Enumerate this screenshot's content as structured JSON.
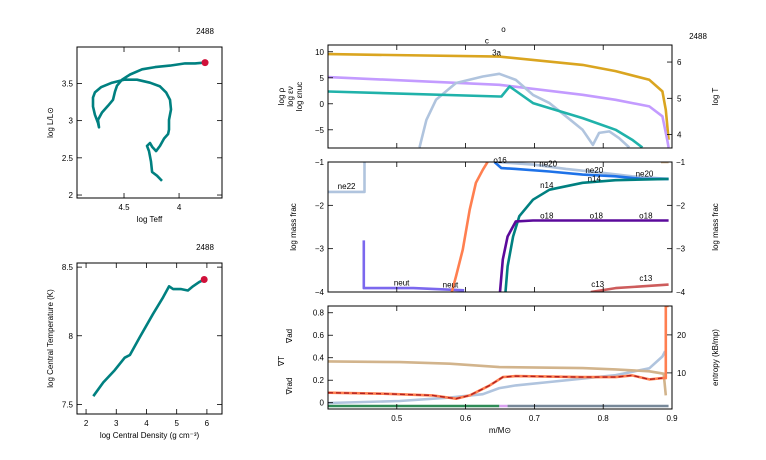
{
  "chart_data": [
    {
      "id": "hr",
      "type": "line",
      "title": "2488",
      "xlabel": "log Teff",
      "ylabel": "log L/L⊙",
      "xlim": [
        4.927,
        3.61
      ],
      "ylim": [
        1.96,
        3.99
      ],
      "xticks": [
        {
          "v": 4.5,
          "label": "4.5"
        },
        {
          "v": 4,
          "label": "4"
        }
      ],
      "yticks": [
        {
          "v": 2,
          "label": "2"
        },
        {
          "v": 2.5,
          "label": "2.5"
        },
        {
          "v": 3,
          "label": "3"
        },
        {
          "v": 3.5,
          "label": "3.5"
        }
      ],
      "series": [
        {
          "color": "#008080",
          "x": [
            4.155,
            4.2,
            4.245,
            4.255,
            4.273,
            4.291,
            4.264,
            4.245,
            4.209,
            4.173,
            4.136,
            4.1,
            4.091,
            4.091,
            4.073,
            4.082,
            4.118,
            4.173,
            4.264,
            4.382,
            4.5,
            4.609,
            4.709,
            4.764,
            4.782,
            4.782,
            4.764,
            4.736,
            4.727,
            4.736,
            4.7,
            4.645,
            4.6,
            4.582,
            4.564,
            4.518,
            4.445,
            4.336,
            4.218,
            4.082,
            3.945,
            3.855,
            3.764
          ],
          "y": [
            2.19,
            2.26,
            2.31,
            2.45,
            2.59,
            2.66,
            2.7,
            2.65,
            2.59,
            2.66,
            2.76,
            2.82,
            2.88,
            3.01,
            3.15,
            3.28,
            3.38,
            3.46,
            3.51,
            3.55,
            3.55,
            3.51,
            3.45,
            3.38,
            3.31,
            3.19,
            3.08,
            2.97,
            2.91,
            3.01,
            3.11,
            3.2,
            3.28,
            3.39,
            3.47,
            3.55,
            3.62,
            3.69,
            3.72,
            3.74,
            3.77,
            3.77,
            3.78
          ]
        }
      ],
      "marker": {
        "color": "#d0103a",
        "x": 3.764,
        "y": 3.78
      }
    },
    {
      "id": "rhoT",
      "type": "line",
      "title": "2488",
      "xlabel": "log Central Density (g cm⁻³)",
      "ylabel": "log Central Temperature (K)",
      "xlim": [
        1.7,
        6.5
      ],
      "ylim": [
        7.43,
        8.53
      ],
      "xticks": [
        {
          "v": 2,
          "label": "2"
        },
        {
          "v": 3,
          "label": "3"
        },
        {
          "v": 4,
          "label": "4"
        },
        {
          "v": 5,
          "label": "5"
        },
        {
          "v": 6,
          "label": "6"
        }
      ],
      "yticks": [
        {
          "v": 7.5,
          "label": "7.5"
        },
        {
          "v": 8,
          "label": "8"
        },
        {
          "v": 8.5,
          "label": "8.5"
        }
      ],
      "series": [
        {
          "color": "#008080",
          "x": [
            2.24,
            2.57,
            2.95,
            3.28,
            3.45,
            3.78,
            4.22,
            4.55,
            4.75,
            4.88,
            5.15,
            5.37,
            5.54,
            5.74,
            5.91
          ],
          "y": [
            7.56,
            7.66,
            7.75,
            7.84,
            7.86,
            7.99,
            8.16,
            8.28,
            8.36,
            8.34,
            8.34,
            8.33,
            8.36,
            8.39,
            8.41
          ]
        }
      ],
      "marker": {
        "color": "#d0103a",
        "x": 5.91,
        "y": 8.41
      }
    },
    {
      "id": "profile_top",
      "type": "line",
      "title": "2488",
      "burn_labels": [
        {
          "text": "o",
          "x": 0.655,
          "y": 13.8
        },
        {
          "text": "c",
          "x": 0.631,
          "y": 11.6
        },
        {
          "text": "3a",
          "x": 0.645,
          "y": 9.3
        }
      ],
      "xlim": [
        0.4,
        0.9
      ],
      "ylim": [
        -8.5,
        11.3
      ],
      "ylim_right": [
        3.63,
        6.47
      ],
      "left_labels": [
        {
          "text": "log ρ",
          "color": "#c39bff"
        },
        {
          "text": "log εν",
          "color": "#20b2aa"
        },
        {
          "text": "log εnuc",
          "color": "#b0c4de"
        }
      ],
      "right_label": {
        "text": "log T",
        "color": "#daa520"
      },
      "yticks": [
        {
          "v": -5,
          "label": "−5"
        },
        {
          "v": 0,
          "label": "0"
        },
        {
          "v": 5,
          "label": "5"
        },
        {
          "v": 10,
          "label": "10"
        }
      ],
      "yticks_right": [
        {
          "v": 4,
          "label": "4"
        },
        {
          "v": 5,
          "label": "5"
        },
        {
          "v": 6,
          "label": "6"
        }
      ],
      "series": [
        {
          "name": "log T",
          "axis": "right",
          "color": "#daa520",
          "x": [
            0.4,
            0.649,
            0.77,
            0.818,
            0.867,
            0.886,
            0.891,
            0.895
          ],
          "y": [
            6.22,
            6.15,
            5.92,
            5.75,
            5.51,
            5.19,
            4.68,
            3.86
          ]
        },
        {
          "name": "log ρ",
          "color": "#c39bff",
          "x": [
            0.4,
            0.649,
            0.77,
            0.818,
            0.867,
            0.886,
            0.893,
            0.895
          ],
          "y": [
            5.13,
            3.65,
            1.73,
            0.77,
            -0.5,
            -2.4,
            -6.9,
            -8.4
          ]
        },
        {
          "name": "log εnuc",
          "color": "#b0c4de",
          "x": [
            0.533,
            0.543,
            0.557,
            0.586,
            0.625,
            0.649,
            0.673,
            0.698,
            0.722,
            0.746,
            0.77,
            0.785,
            0.794,
            0.809,
            0.823,
            0.838
          ],
          "y": [
            -8.4,
            -3.1,
            0.77,
            4.0,
            5.25,
            5.77,
            4.6,
            1.7,
            0.13,
            -2.4,
            -5.0,
            -7.9,
            -5.6,
            -5.3,
            -6.6,
            -8.4
          ]
        },
        {
          "name": "log εν",
          "color": "#20b2aa",
          "x": [
            0.4,
            0.649,
            0.652,
            0.664,
            0.698,
            0.722,
            0.77,
            0.818,
            0.842,
            0.857
          ],
          "y": [
            2.37,
            1.4,
            1.4,
            3.33,
            0.13,
            -0.83,
            -2.75,
            -5.0,
            -6.9,
            -8.4
          ]
        }
      ]
    },
    {
      "id": "profile_mid",
      "type": "line",
      "xlim": [
        0.4,
        0.9
      ],
      "ylim": [
        -4,
        -1
      ],
      "ylabel": "log mass frac",
      "ylabel_right": "log mass frac",
      "yticks": [
        {
          "v": -4,
          "label": "−4"
        },
        {
          "v": -3,
          "label": "−3"
        },
        {
          "v": -2,
          "label": "−2"
        },
        {
          "v": -1,
          "label": "−1"
        }
      ],
      "series": [
        {
          "name": "ne22",
          "color": "#b0c4de",
          "x": [
            0.4,
            0.453,
            0.453
          ],
          "y": [
            -1.69,
            -1.69,
            -1.0
          ]
        },
        {
          "name": "neut",
          "color": "#7b68ee",
          "x": [
            0.452,
            0.452,
            0.524,
            0.598
          ],
          "y": [
            -2.81,
            -3.91,
            -3.91,
            -3.96
          ]
        },
        {
          "color": "#ff7f50",
          "x": [
            0.58,
            0.586,
            0.596,
            0.606,
            0.615,
            0.625,
            0.632
          ],
          "y": [
            -4.0,
            -3.64,
            -3.02,
            -2.1,
            -1.48,
            -1.18,
            -1.0
          ]
        },
        {
          "name": "ne20",
          "color": "#b0c4de",
          "x": [
            0.645,
            0.698,
            0.746,
            0.794,
            0.842,
            0.895
          ],
          "y": [
            -1.0,
            -1.06,
            -1.16,
            -1.24,
            -1.33,
            -1.39
          ]
        },
        {
          "name": "o16",
          "color": "#1e72e8",
          "x": [
            0.642,
            0.652,
            0.673,
            0.722,
            0.77,
            0.818,
            0.857,
            0.895
          ],
          "y": [
            -1.0,
            -1.14,
            -1.16,
            -1.22,
            -1.29,
            -1.33,
            -1.39,
            -1.39
          ]
        },
        {
          "name": "n14",
          "color": "#008080",
          "x": [
            0.658,
            0.661,
            0.669,
            0.678,
            0.698,
            0.722,
            0.77,
            0.818,
            0.895
          ],
          "y": [
            -4.0,
            -3.41,
            -2.72,
            -2.25,
            -1.87,
            -1.64,
            -1.48,
            -1.42,
            -1.39
          ]
        },
        {
          "name": "o18",
          "color": "#5b0a9b",
          "x": [
            0.65,
            0.654,
            0.661,
            0.673,
            0.698,
            0.895
          ],
          "y": [
            -4.0,
            -3.25,
            -2.72,
            -2.37,
            -2.35,
            -2.35
          ]
        },
        {
          "name": "c13",
          "color": "#cd5c5c",
          "x": [
            0.782,
            0.818,
            0.895
          ],
          "y": [
            -4.0,
            -3.91,
            -3.83
          ]
        },
        {
          "color": "#d2b48c",
          "x": [
            0.884,
            0.895
          ],
          "y": [
            -1.0,
            -1.0
          ]
        }
      ],
      "labels": [
        {
          "text": "ne22",
          "color": "#b0c4de",
          "x": 0.427,
          "y": -1.62
        },
        {
          "text": "neut",
          "color": "#7b68ee",
          "x": 0.507,
          "y": -3.85
        },
        {
          "text": "neut",
          "color": "#7b68ee",
          "x": 0.578,
          "y": -3.9
        },
        {
          "text": "o16",
          "color": "#1e72e8",
          "x": 0.65,
          "y": -1.02
        },
        {
          "text": "ne20",
          "color": "#b0c4de",
          "x": 0.72,
          "y": -1.1
        },
        {
          "text": "ne20",
          "color": "#b0c4de",
          "x": 0.787,
          "y": -1.25
        },
        {
          "text": "ne20",
          "color": "#b0c4de",
          "x": 0.86,
          "y": -1.33
        },
        {
          "text": "n14",
          "color": "#008080",
          "x": 0.718,
          "y": -1.6
        },
        {
          "text": "n14",
          "color": "#008080",
          "x": 0.787,
          "y": -1.45
        },
        {
          "text": "o18",
          "color": "#5b0a9b",
          "x": 0.718,
          "y": -2.3
        },
        {
          "text": "o18",
          "color": "#5b0a9b",
          "x": 0.79,
          "y": -2.3
        },
        {
          "text": "o18",
          "color": "#5b0a9b",
          "x": 0.862,
          "y": -2.3
        },
        {
          "text": "c13",
          "color": "#cd5c5c",
          "x": 0.792,
          "y": -3.88
        },
        {
          "text": "c13",
          "color": "#cd5c5c",
          "x": 0.862,
          "y": -3.75
        }
      ]
    },
    {
      "id": "profile_bot",
      "type": "line",
      "xlim": [
        0.4,
        0.9
      ],
      "ylim": [
        -0.056,
        0.86
      ],
      "ylim_right": [
        0.5,
        27.6
      ],
      "xlabel": "m/M⊙",
      "xticks": [
        {
          "v": 0.5,
          "label": "0.5"
        },
        {
          "v": 0.6,
          "label": "0.6"
        },
        {
          "v": 0.7,
          "label": "0.7"
        },
        {
          "v": 0.8,
          "label": "0.8"
        },
        {
          "v": 0.9,
          "label": "0.9"
        }
      ],
      "yticks": [
        {
          "v": 0,
          "label": "0"
        },
        {
          "v": 0.2,
          "label": "0.2"
        },
        {
          "v": 0.4,
          "label": "0.4"
        },
        {
          "v": 0.6,
          "label": "0.6"
        },
        {
          "v": 0.8,
          "label": "0.8"
        }
      ],
      "yticks_right": [
        {
          "v": 10,
          "label": "10"
        },
        {
          "v": 20,
          "label": "20"
        }
      ],
      "left_labels": [
        {
          "text": "∇ad",
          "color": "#d2b48c"
        },
        {
          "text": "∇T",
          "color": "#b22222"
        },
        {
          "text": "∇rad",
          "color": "#ff7f50"
        }
      ],
      "right_label": {
        "text": "entropy (kB/mp)",
        "color": "#000000"
      },
      "series": [
        {
          "name": "entropy",
          "axis": "right",
          "color": "#b0c4de",
          "x": [
            0.4,
            0.504,
            0.577,
            0.625,
            0.649,
            0.673,
            0.722,
            0.77,
            0.818,
            0.867,
            0.886,
            0.89
          ],
          "y": [
            2.07,
            2.6,
            3.5,
            4.4,
            6.0,
            6.7,
            7.6,
            8.5,
            9.4,
            11.2,
            14.3,
            15.7
          ]
        },
        {
          "name": "∇ad",
          "color": "#d2b48c",
          "x": [
            0.4,
            0.504,
            0.577,
            0.649,
            0.77,
            0.818,
            0.867,
            0.888,
            0.891
          ],
          "y": [
            0.367,
            0.361,
            0.347,
            0.317,
            0.308,
            0.296,
            0.279,
            0.258,
            0.065
          ]
        },
        {
          "name": "∇rad",
          "color": "#ff7f50",
          "x": [
            0.4,
            0.48,
            0.552,
            0.586,
            0.606,
            0.635,
            0.654,
            0.673,
            0.77,
            0.818,
            0.842,
            0.867,
            0.886,
            0.891,
            0.891,
            0.895
          ],
          "y": [
            0.089,
            0.08,
            0.065,
            0.036,
            0.065,
            0.154,
            0.228,
            0.237,
            0.228,
            0.228,
            0.243,
            0.207,
            0.219,
            0.219,
            0.86,
            0.86
          ]
        },
        {
          "name": "∇T",
          "color": "#b22222",
          "dashed": true,
          "x": [
            0.4,
            0.48,
            0.552,
            0.586,
            0.606,
            0.635,
            0.654,
            0.673,
            0.77,
            0.818,
            0.842,
            0.867,
            0.886
          ],
          "y": [
            0.089,
            0.08,
            0.065,
            0.036,
            0.065,
            0.154,
            0.228,
            0.237,
            0.228,
            0.228,
            0.243,
            0.207,
            0.219
          ]
        }
      ],
      "mixing_bar": [
        {
          "color": "#2e8b57",
          "from": 0.4,
          "to": 0.649
        },
        {
          "color": "#d8a0f0",
          "from": 0.649,
          "to": 0.661
        },
        {
          "color": "#778899",
          "from": 0.661,
          "to": 0.895
        }
      ]
    }
  ]
}
